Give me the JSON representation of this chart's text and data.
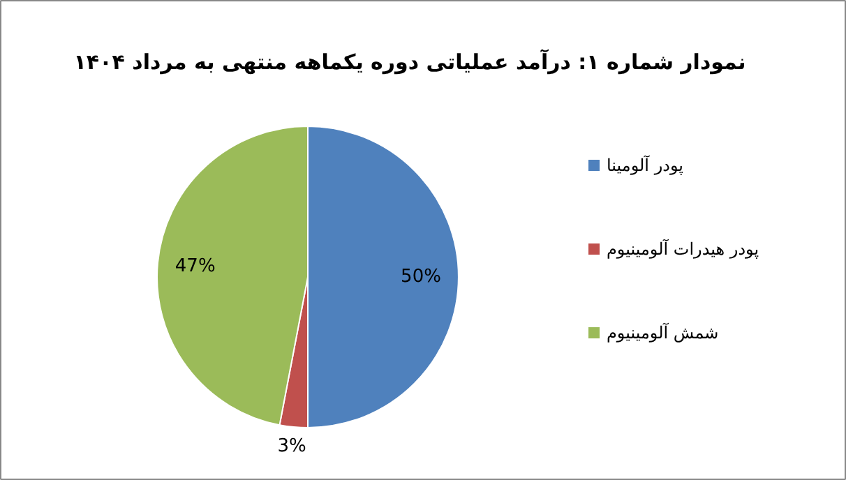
{
  "chart_data": {
    "type": "pie",
    "title": "نمودار شماره ۱: درآمد عملیاتی دوره یکماهه منتهی به مرداد ۱۴۰۴",
    "categories": [
      "پودر آلومینا",
      "پودر هیدرات آلومینیوم",
      "شمش آلومینیوم"
    ],
    "values": [
      50,
      3,
      47
    ],
    "colors": [
      "#4f81bd",
      "#c0504d",
      "#9bbb59"
    ],
    "value_labels": [
      "50%",
      "3%",
      "47%"
    ],
    "legend": "right"
  }
}
